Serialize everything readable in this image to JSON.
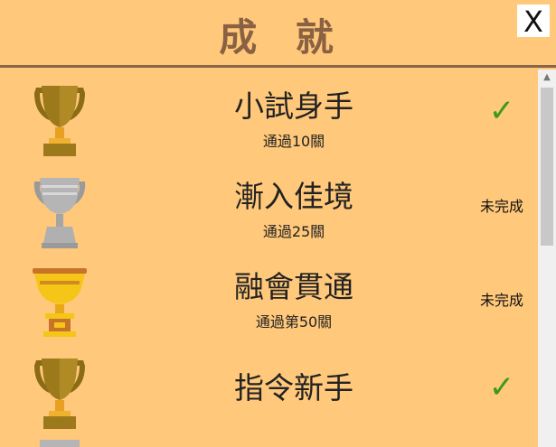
{
  "header": {
    "title": "成 就",
    "close_label": "X"
  },
  "achievements": [
    {
      "name": "小試身手",
      "desc": "通過10關",
      "status": "✓",
      "completed": true,
      "trophy": "bronze-trophy-icon"
    },
    {
      "name": "漸入佳境",
      "desc": "通過25關",
      "status": "未完成",
      "completed": false,
      "trophy": "silver-trophy-icon"
    },
    {
      "name": "融會貫通",
      "desc": "通過第50關",
      "status": "未完成",
      "completed": false,
      "trophy": "gold-trophy-icon"
    },
    {
      "name": "指令新手",
      "desc": "",
      "status": "✓",
      "completed": true,
      "trophy": "bronze-trophy-icon"
    }
  ],
  "colors": {
    "background": "#ffc87a",
    "title": "#8a6142",
    "check": "#3a9a1c",
    "bronze": "#8b6b14",
    "silver": "#a9a9a9",
    "gold": "#f5c518"
  }
}
